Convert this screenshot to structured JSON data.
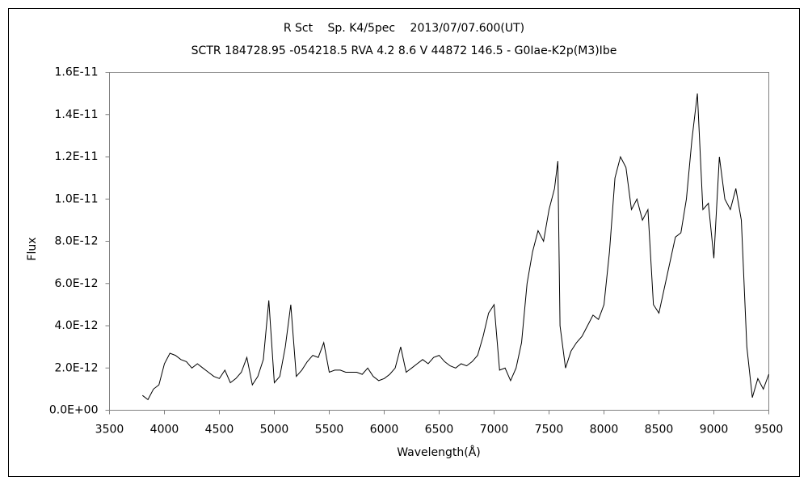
{
  "chart_data": {
    "type": "line",
    "title": "R Sct　 Sp. K4/5pec　 2013/07/07.600(UT)",
    "subtitle": "SCTR 184728.95 -054218.5 RVA 4.2 8.6 V 44872 146.5 - G0Iae-K2p(M3)Ibe",
    "x_label": "Wavelength(Å)",
    "y_label": "Flux",
    "color": "#000000",
    "grid": false,
    "x": [
      3800,
      3850,
      3900,
      3950,
      4000,
      4050,
      4100,
      4150,
      4200,
      4250,
      4300,
      4350,
      4400,
      4450,
      4500,
      4550,
      4600,
      4650,
      4700,
      4750,
      4800,
      4850,
      4900,
      4950,
      5000,
      5050,
      5100,
      5150,
      5200,
      5250,
      5300,
      5350,
      5400,
      5450,
      5500,
      5550,
      5600,
      5650,
      5700,
      5750,
      5800,
      5850,
      5900,
      5950,
      6000,
      6050,
      6100,
      6150,
      6200,
      6250,
      6300,
      6350,
      6400,
      6450,
      6500,
      6550,
      6600,
      6650,
      6700,
      6750,
      6800,
      6850,
      6900,
      6950,
      7000,
      7050,
      7100,
      7150,
      7200,
      7250,
      7300,
      7350,
      7400,
      7450,
      7500,
      7550,
      7580,
      7600,
      7650,
      7700,
      7750,
      7800,
      7850,
      7900,
      7950,
      8000,
      8050,
      8100,
      8150,
      8200,
      8250,
      8300,
      8350,
      8400,
      8450,
      8500,
      8550,
      8600,
      8650,
      8700,
      8750,
      8800,
      8850,
      8900,
      8950,
      9000,
      9050,
      9100,
      9150,
      9200,
      9250,
      9300,
      9350,
      9400,
      9450,
      9500
    ],
    "values": [
      7e-13,
      5e-13,
      1e-12,
      1.2e-12,
      2.2e-12,
      2.7e-12,
      2.6e-12,
      2.4e-12,
      2.3e-12,
      2e-12,
      2.2e-12,
      2e-12,
      1.8e-12,
      1.6e-12,
      1.5e-12,
      1.9e-12,
      1.3e-12,
      1.5e-12,
      1.8e-12,
      2.5e-12,
      1.2e-12,
      1.6e-12,
      2.4e-12,
      5.2e-12,
      1.3e-12,
      1.6e-12,
      3e-12,
      5e-12,
      1.6e-12,
      1.9e-12,
      2.3e-12,
      2.6e-12,
      2.5e-12,
      3.2e-12,
      1.8e-12,
      1.9e-12,
      1.9e-12,
      1.8e-12,
      1.8e-12,
      1.8e-12,
      1.7e-12,
      2e-12,
      1.6e-12,
      1.4e-12,
      1.5e-12,
      1.7e-12,
      2e-12,
      3e-12,
      1.8e-12,
      2e-12,
      2.2e-12,
      2.4e-12,
      2.2e-12,
      2.5e-12,
      2.6e-12,
      2.3e-12,
      2.1e-12,
      2e-12,
      2.2e-12,
      2.1e-12,
      2.3e-12,
      2.6e-12,
      3.5e-12,
      4.6e-12,
      5e-12,
      1.9e-12,
      2e-12,
      1.4e-12,
      2e-12,
      3.2e-12,
      6e-12,
      7.5e-12,
      8.5e-12,
      8e-12,
      9.5e-12,
      1.05e-11,
      1.18e-11,
      4e-12,
      2e-12,
      2.8e-12,
      3.2e-12,
      3.5e-12,
      4e-12,
      4.5e-12,
      4.3e-12,
      5e-12,
      7.5e-12,
      1.1e-11,
      1.2e-11,
      1.15e-11,
      9.5e-12,
      1e-11,
      9e-12,
      9.5e-12,
      5e-12,
      4.6e-12,
      5.8e-12,
      7e-12,
      8.2e-12,
      8.4e-12,
      1e-11,
      1.28e-11,
      1.5e-11,
      9.5e-12,
      9.8e-12,
      7.2e-12,
      1.2e-11,
      1e-11,
      9.5e-12,
      1.05e-11,
      9e-12,
      3e-12,
      6e-13,
      1.5e-12,
      1e-12,
      1.7e-12
    ],
    "xlim": [
      3500,
      9500
    ],
    "xticks": [
      3500,
      4000,
      4500,
      5000,
      5500,
      6000,
      6500,
      7000,
      7500,
      8000,
      8500,
      9000,
      9500
    ],
    "ylim": [
      0,
      1.6e-11
    ],
    "yticks": [
      {
        "value": 0,
        "label": "0.0E+00"
      },
      {
        "value": 2e-12,
        "label": "2.0E-12"
      },
      {
        "value": 4e-12,
        "label": "4.0E-12"
      },
      {
        "value": 6e-12,
        "label": "6.0E-12"
      },
      {
        "value": 8e-12,
        "label": "8.0E-12"
      },
      {
        "value": 1e-11,
        "label": "1.0E-11"
      },
      {
        "value": 1.2e-11,
        "label": "1.2E-11"
      },
      {
        "value": 1.4e-11,
        "label": "1.4E-11"
      },
      {
        "value": 1.6e-11,
        "label": "1.6E-11"
      }
    ]
  }
}
